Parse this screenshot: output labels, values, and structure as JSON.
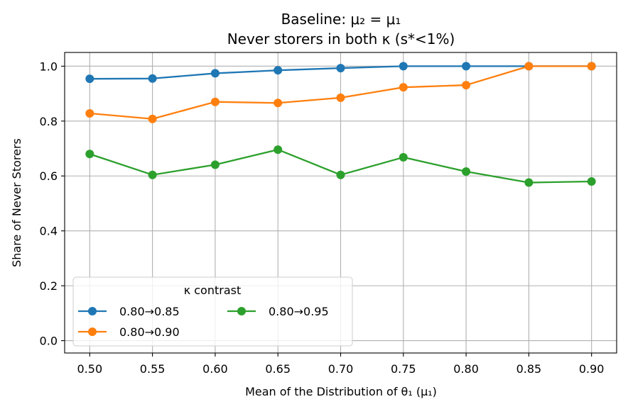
{
  "chart_data": {
    "type": "line",
    "title_line1": "Baseline: μ₂ = μ₁",
    "title_line2": "Never storers in both κ (s*<1%)",
    "xlabel": "Mean of the Distribution of θ₁ (μ₁)",
    "ylabel": "Share of Never Storers",
    "x": [
      0.5,
      0.55,
      0.6,
      0.65,
      0.7,
      0.75,
      0.8,
      0.85,
      0.9
    ],
    "x_tick_labels": [
      "0.50",
      "0.55",
      "0.60",
      "0.65",
      "0.70",
      "0.75",
      "0.80",
      "0.85",
      "0.90"
    ],
    "y_ticks": [
      0.0,
      0.2,
      0.4,
      0.6,
      0.8,
      1.0
    ],
    "y_tick_labels": [
      "0.0",
      "0.2",
      "0.4",
      "0.6",
      "0.8",
      "1.0"
    ],
    "xlim": [
      0.48,
      0.92
    ],
    "ylim": [
      -0.045,
      1.05
    ],
    "grid": true,
    "legend": {
      "title": "κ contrast",
      "placement": "lower-left",
      "columns": 2
    },
    "series": [
      {
        "name": "0.80→0.85",
        "color": "#1f77b4",
        "values": [
          0.954,
          0.955,
          0.974,
          0.985,
          0.993,
          1.0,
          1.0,
          1.0,
          1.0
        ]
      },
      {
        "name": "0.80→0.90",
        "color": "#ff7f0e",
        "values": [
          0.828,
          0.808,
          0.87,
          0.866,
          0.885,
          0.923,
          0.931,
          1.0,
          1.0
        ]
      },
      {
        "name": "0.80→0.95",
        "color": "#2ca02c",
        "values": [
          0.68,
          0.604,
          0.641,
          0.696,
          0.604,
          0.668,
          0.616,
          0.576,
          0.58
        ]
      }
    ]
  }
}
